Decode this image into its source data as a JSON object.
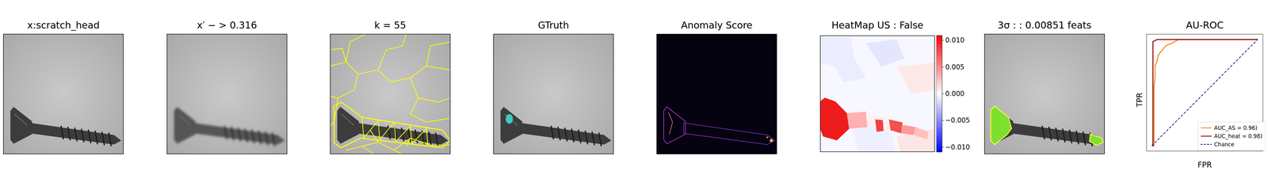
{
  "panels": [
    {
      "title": "x:scratch_head"
    },
    {
      "title": "x′ − > 0.316"
    },
    {
      "title": "k = 55"
    },
    {
      "title": "GTruth"
    },
    {
      "title": "Anomaly Score"
    },
    {
      "title": "HeatMap US : False"
    },
    {
      "title": "3σ : : 0.00851 feats"
    }
  ],
  "heatmap_colorbar": {
    "range": [
      -0.0109,
      0.0109
    ],
    "ticks": [
      {
        "value": -0.01,
        "label": "−0.010"
      },
      {
        "value": -0.005,
        "label": "−0.005"
      },
      {
        "value": 0,
        "label": "0.000"
      },
      {
        "value": 0.005,
        "label": "0.005"
      },
      {
        "value": 0.01,
        "label": "0.010"
      }
    ]
  },
  "chart_data": {
    "type": "line",
    "title": "AU-ROC",
    "x_label": "FPR",
    "y_label": "TPR",
    "xlim": [
      -0.05,
      1.05
    ],
    "ylim": [
      -0.05,
      1.05
    ],
    "tick_labels": false,
    "legend": "lower right",
    "series": [
      {
        "name": "AUC_AS = 0.96)",
        "color": "#ff7f0e",
        "x": [
          0,
          0.02,
          0.02,
          0.03,
          0.03,
          0.05,
          0.06,
          0.08,
          0.1,
          0.12,
          0.15,
          0.2,
          0.25,
          1
        ],
        "values": [
          0,
          0,
          0.55,
          0.65,
          0.75,
          0.8,
          0.85,
          0.88,
          0.9,
          0.93,
          0.95,
          0.97,
          1,
          1
        ]
      },
      {
        "name": "AUC_heat = 0.98)",
        "color": "#8b0000",
        "x": [
          0,
          0.01,
          0.01,
          0.05,
          1
        ],
        "values": [
          0,
          0,
          0.98,
          1,
          1
        ]
      },
      {
        "name": "Chance",
        "color": "#000080",
        "line_style": "dashed",
        "x": [
          0,
          1
        ],
        "values": [
          0,
          1
        ]
      }
    ]
  }
}
